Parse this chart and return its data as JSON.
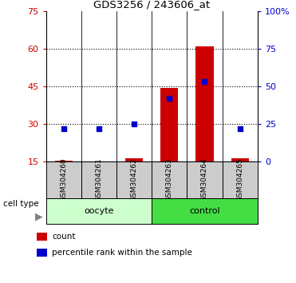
{
  "title": "GDS3256 / 243606_at",
  "samples": [
    "GSM304260",
    "GSM304261",
    "GSM304262",
    "GSM304263",
    "GSM304264",
    "GSM304265"
  ],
  "count_values": [
    15.2,
    15.0,
    16.2,
    44.5,
    61.0,
    16.2
  ],
  "percentile_values": [
    22,
    22,
    25,
    42,
    53,
    22
  ],
  "left_ylim": [
    15,
    75
  ],
  "right_ylim": [
    0,
    100
  ],
  "left_yticks": [
    15,
    30,
    45,
    60,
    75
  ],
  "right_yticks": [
    0,
    25,
    50,
    75,
    100
  ],
  "right_yticklabels": [
    "0",
    "25",
    "50",
    "75",
    "100%"
  ],
  "bar_color": "#cc0000",
  "dot_color": "#0000cc",
  "groups": [
    {
      "label": "oocyte",
      "indices": [
        0,
        1,
        2
      ],
      "color": "#ccffcc",
      "dark_color": "#44cc44"
    },
    {
      "label": "control",
      "indices": [
        3,
        4,
        5
      ],
      "color": "#44dd44",
      "dark_color": "#22aa22"
    }
  ],
  "cell_type_label": "cell type",
  "legend_items": [
    {
      "label": "count",
      "color": "#cc0000"
    },
    {
      "label": "percentile rank within the sample",
      "color": "#0000cc"
    }
  ],
  "left_tick_color": "#cc0000",
  "right_tick_color": "#0000cc",
  "bar_width": 0.5,
  "dot_size": 25,
  "sample_box_color": "#cccccc",
  "gridline_yticks": [
    30,
    45,
    60
  ]
}
